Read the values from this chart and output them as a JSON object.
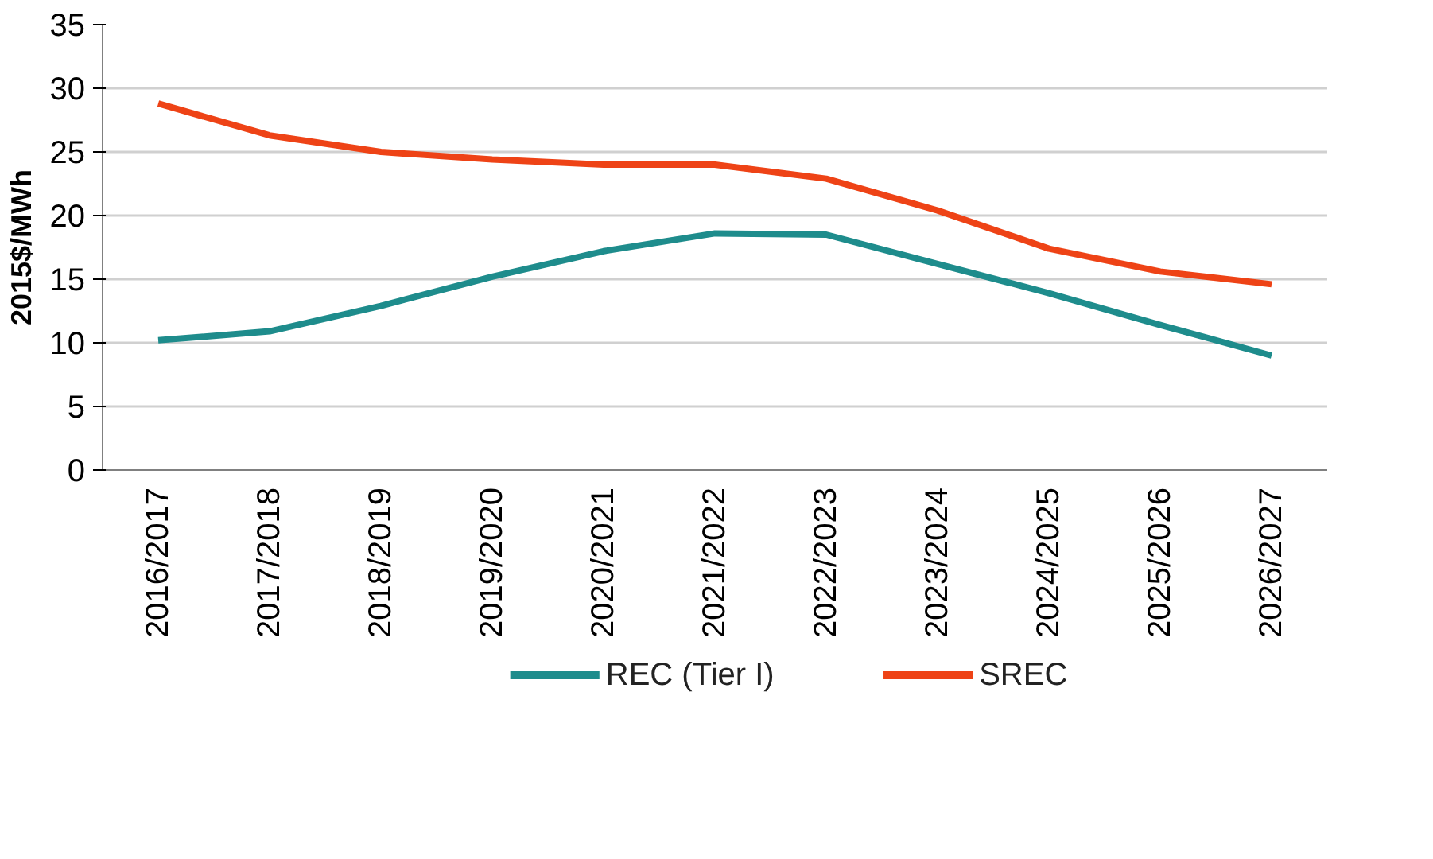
{
  "chart_data": {
    "type": "line",
    "ylabel": "2015$/MWh",
    "categories": [
      "2016/2017",
      "2017/2018",
      "2018/2019",
      "2019/2020",
      "2020/2021",
      "2021/2022",
      "2022/2023",
      "2023/2024",
      "2024/2025",
      "2025/2026",
      "2026/2027"
    ],
    "series": [
      {
        "name": "REC (Tier I)",
        "color": "#1e8c8c",
        "values": [
          10.2,
          10.9,
          12.9,
          15.2,
          17.2,
          18.6,
          18.5,
          16.2,
          13.9,
          11.4,
          9.0
        ]
      },
      {
        "name": "SREC",
        "color": "#ee4316",
        "values": [
          28.8,
          26.3,
          25.0,
          24.4,
          24.0,
          24.0,
          22.9,
          20.4,
          17.4,
          15.6,
          14.6
        ]
      }
    ],
    "ylim": [
      0,
      35
    ],
    "yticks": [
      0,
      5,
      10,
      15,
      20,
      25,
      30,
      35
    ],
    "grid": "y",
    "legend": "bottom",
    "line_style": "solid",
    "marker": "none"
  }
}
